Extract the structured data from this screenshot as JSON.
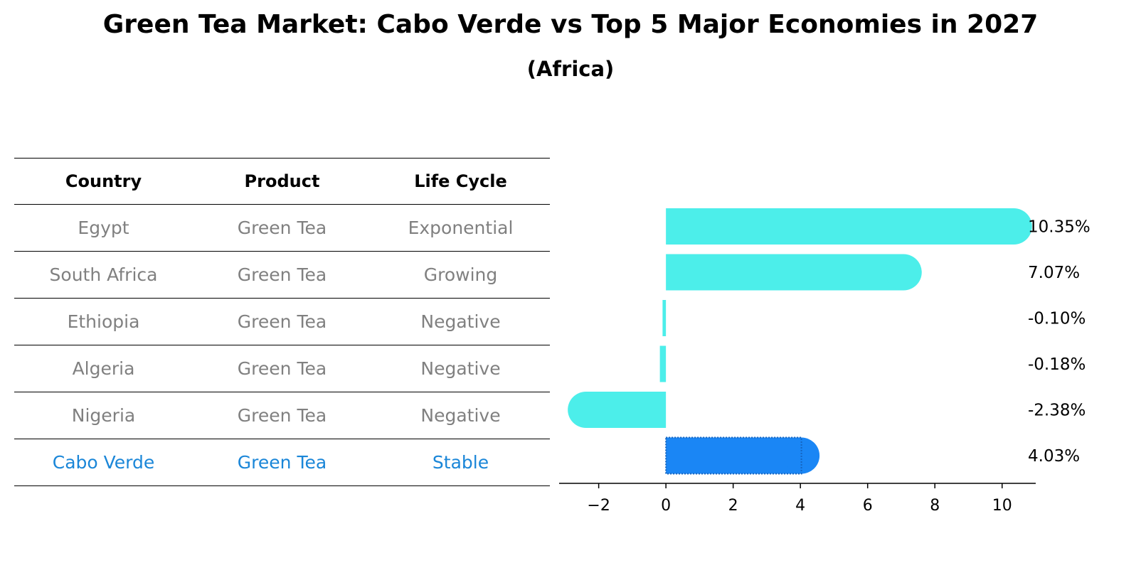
{
  "title": "Green Tea Market: Cabo Verde vs Top 5 Major Economies in 2027",
  "subtitle": "(Africa)",
  "table": {
    "headers": [
      "Country",
      "Product",
      "Life Cycle"
    ],
    "rows": [
      [
        "Egypt",
        "Green Tea",
        "Exponential"
      ],
      [
        "South Africa",
        "Green Tea",
        "Growing"
      ],
      [
        "Ethiopia",
        "Green Tea",
        "Negative"
      ],
      [
        "Algeria",
        "Green Tea",
        "Negative"
      ],
      [
        "Nigeria",
        "Green Tea",
        "Negative"
      ],
      [
        "Cabo Verde",
        "Green Tea",
        "Stable"
      ]
    ],
    "highlight_row": 5,
    "highlight_color": "#1a86d8",
    "default_text_color": "#808080"
  },
  "chart_data": {
    "type": "bar",
    "orientation": "horizontal",
    "categories": [
      "Egypt",
      "South Africa",
      "Ethiopia",
      "Algeria",
      "Nigeria",
      "Cabo Verde"
    ],
    "values": [
      10.35,
      7.07,
      -0.1,
      -0.18,
      -2.38,
      4.03
    ],
    "value_labels": [
      "10.35%",
      "7.07%",
      "-0.10%",
      "-0.18%",
      "-2.38%",
      "4.03%"
    ],
    "bar_colors": [
      "#4ceeea",
      "#4ceeea",
      "#4ceeea",
      "#4ceeea",
      "#4ceeea",
      "#1a86f5"
    ],
    "xlim": [
      -3.05,
      11
    ],
    "xticks": [
      -2,
      0,
      2,
      4,
      6,
      8,
      10
    ],
    "xtick_labels": [
      "−2",
      "0",
      "2",
      "4",
      "6",
      "8",
      "10"
    ],
    "grid": false
  }
}
